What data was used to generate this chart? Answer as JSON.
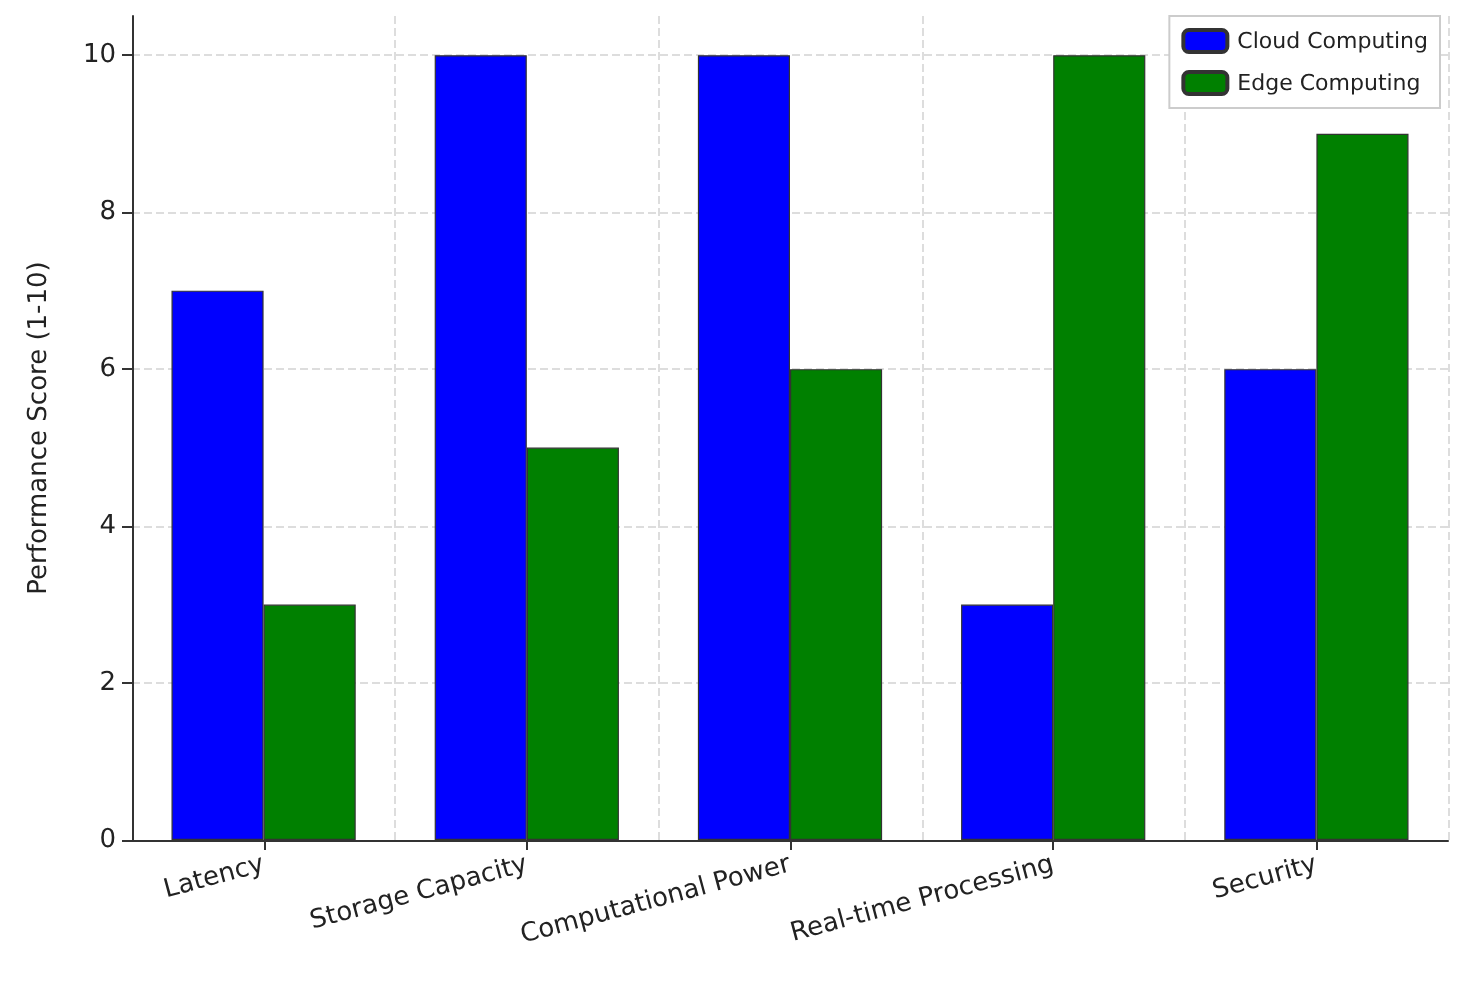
{
  "chart_data": {
    "type": "bar",
    "ylabel": "Performance Score (1-10)",
    "categories": [
      "Latency",
      "Storage Capacity",
      "Computational Power",
      "Real-time Processing",
      "Security"
    ],
    "series": [
      {
        "name": "Cloud Computing",
        "color": "#0000ff",
        "values": [
          7,
          10,
          10,
          3,
          6
        ]
      },
      {
        "name": "Edge Computing",
        "color": "#008000",
        "values": [
          3,
          5,
          6,
          10,
          9
        ]
      }
    ],
    "ylim": [
      0,
      10.5
    ],
    "yticks": [
      0,
      2,
      4,
      6,
      8,
      10
    ],
    "grid": true,
    "legend": "top right"
  }
}
